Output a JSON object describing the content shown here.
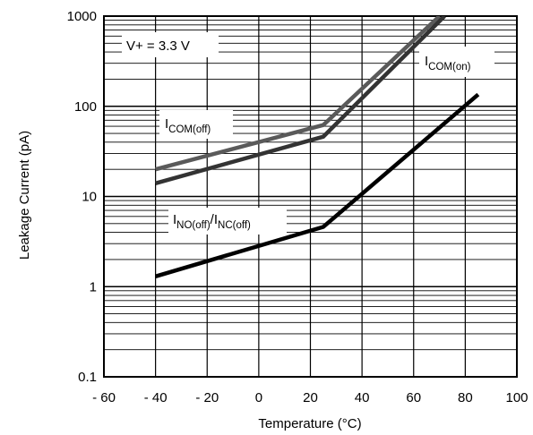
{
  "chart_data": {
    "type": "line",
    "title": "",
    "xlabel": "Temperature (°C)",
    "ylabel": "Leakage Current (pA)",
    "xlim": [
      -60,
      100
    ],
    "ylim": [
      0.1,
      1000
    ],
    "y_scale": "log",
    "grid": true,
    "x_ticks": [
      "- 60",
      "- 40",
      "- 20",
      "0",
      "20",
      "40",
      "60",
      "80",
      "100"
    ],
    "y_ticks": [
      "0.1",
      "1",
      "10",
      "100",
      "1000"
    ],
    "condition_label": "V+ = 3.3 V",
    "series": [
      {
        "name": "ICOM(on)",
        "label_main": "I",
        "label_sub": "COM(on)",
        "color": "#5a5a5a",
        "x": [
          -40,
          25,
          70
        ],
        "y": [
          20,
          62,
          1000
        ]
      },
      {
        "name": "ICOM(off)",
        "label_main": "I",
        "label_sub": "COM(off)",
        "color": "#333333",
        "x": [
          -40,
          25,
          72
        ],
        "y": [
          14,
          46,
          1000
        ]
      },
      {
        "name": "INO(off)/INC(off)",
        "label_main1": "I",
        "label_sub1": "NO(off)",
        "label_main2": "/I",
        "label_sub2": "NC(off)",
        "color": "#000000",
        "x": [
          -40,
          25,
          85
        ],
        "y": [
          1.3,
          4.6,
          135
        ]
      }
    ]
  }
}
